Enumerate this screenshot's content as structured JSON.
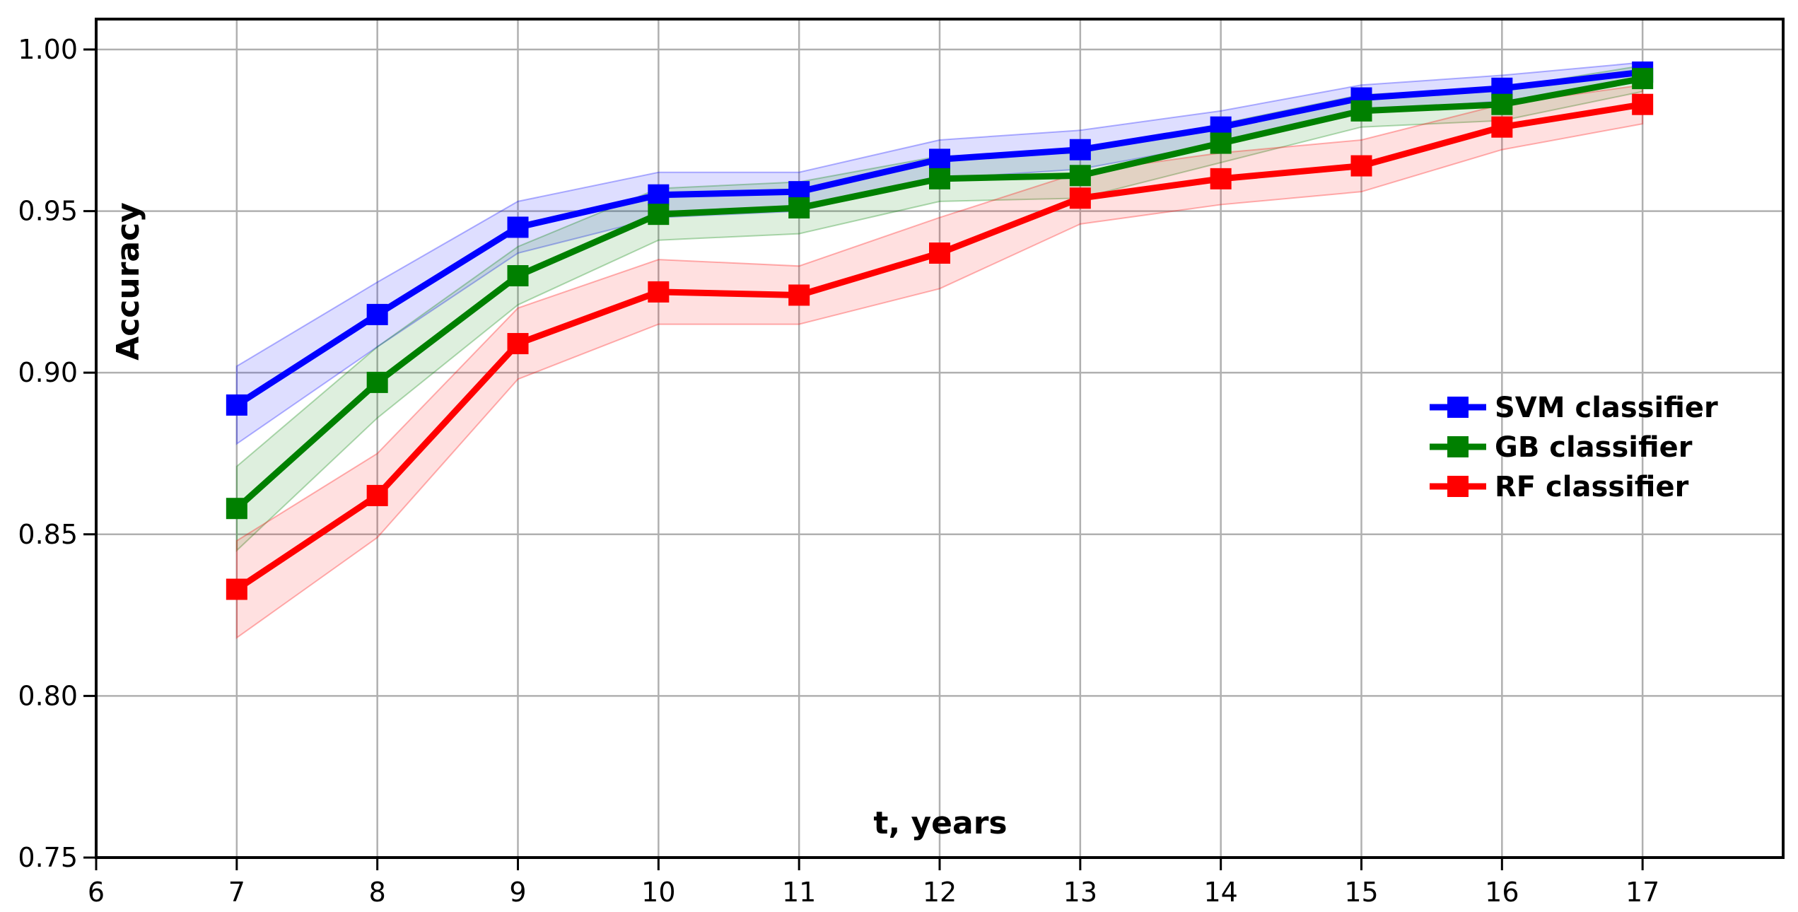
{
  "figure": {
    "background": "#ffffff",
    "border_color": "#000000",
    "grid_color": "#b0b0b0",
    "text_color": "#000000"
  },
  "chart_data": {
    "type": "line",
    "title": "",
    "xlabel": "t, years",
    "ylabel": "Accuracy",
    "grid": true,
    "legend_position": "center-right-inside",
    "xlim": [
      6,
      18
    ],
    "ylim": [
      0.75,
      1.0094
    ],
    "xticks": [
      6,
      7,
      8,
      9,
      10,
      11,
      12,
      13,
      14,
      15,
      16,
      17
    ],
    "xtick_labels": [
      "6",
      "7",
      "8",
      "9",
      "10",
      "11",
      "12",
      "13",
      "14",
      "15",
      "16",
      "17"
    ],
    "yticks": [
      0.75,
      0.8,
      0.85,
      0.9,
      0.95,
      1.0
    ],
    "ytick_labels": [
      "0.75",
      "0.80",
      "0.85",
      "0.90",
      "0.95",
      "1.00"
    ],
    "x": [
      7,
      8,
      9,
      10,
      11,
      12,
      13,
      14,
      15,
      16,
      17
    ],
    "series": [
      {
        "name": "SVM classifier",
        "color": "#0000ff",
        "band_alpha": 0.13,
        "values": [
          0.89,
          0.918,
          0.945,
          0.955,
          0.956,
          0.966,
          0.969,
          0.976,
          0.985,
          0.988,
          0.993
        ],
        "band_upper": [
          0.902,
          0.928,
          0.953,
          0.962,
          0.962,
          0.972,
          0.975,
          0.981,
          0.989,
          0.992,
          0.996
        ],
        "band_lower": [
          0.878,
          0.908,
          0.937,
          0.948,
          0.95,
          0.96,
          0.963,
          0.971,
          0.981,
          0.984,
          0.99
        ]
      },
      {
        "name": "GB classifier",
        "color": "#008000",
        "band_alpha": 0.13,
        "values": [
          0.858,
          0.897,
          0.93,
          0.949,
          0.951,
          0.96,
          0.961,
          0.971,
          0.981,
          0.983,
          0.991
        ],
        "band_upper": [
          0.871,
          0.908,
          0.939,
          0.957,
          0.959,
          0.967,
          0.968,
          0.977,
          0.986,
          0.988,
          0.995
        ],
        "band_lower": [
          0.845,
          0.886,
          0.921,
          0.941,
          0.943,
          0.953,
          0.954,
          0.965,
          0.976,
          0.978,
          0.987
        ]
      },
      {
        "name": "RF classifier",
        "color": "#ff0000",
        "band_alpha": 0.12,
        "values": [
          0.833,
          0.862,
          0.909,
          0.925,
          0.924,
          0.937,
          0.954,
          0.96,
          0.964,
          0.976,
          0.983
        ],
        "band_upper": [
          0.848,
          0.875,
          0.92,
          0.935,
          0.933,
          0.948,
          0.962,
          0.968,
          0.972,
          0.983,
          0.989
        ],
        "band_lower": [
          0.818,
          0.849,
          0.898,
          0.915,
          0.915,
          0.926,
          0.946,
          0.952,
          0.956,
          0.969,
          0.977
        ]
      }
    ]
  }
}
